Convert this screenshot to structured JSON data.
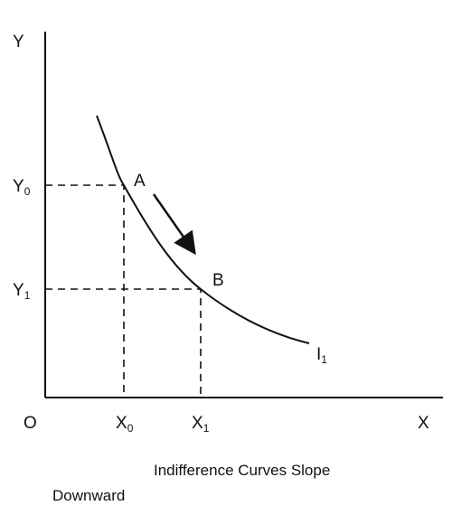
{
  "axes": {
    "y_axis": "Y",
    "x_axis": "X",
    "origin": "O"
  },
  "y_labels": [
    {
      "letter": "Y",
      "subscript": "0"
    },
    {
      "letter": "Y",
      "subscript": "1"
    }
  ],
  "x_labels": [
    {
      "letter": "X",
      "subscript": "0"
    },
    {
      "letter": "X",
      "subscript": "1"
    }
  ],
  "points": [
    "A",
    "B"
  ],
  "curve_label": {
    "letter": "I",
    "subscript": "1"
  },
  "caption": [
    "Indifference Curves Slope",
    "Downward"
  ]
}
